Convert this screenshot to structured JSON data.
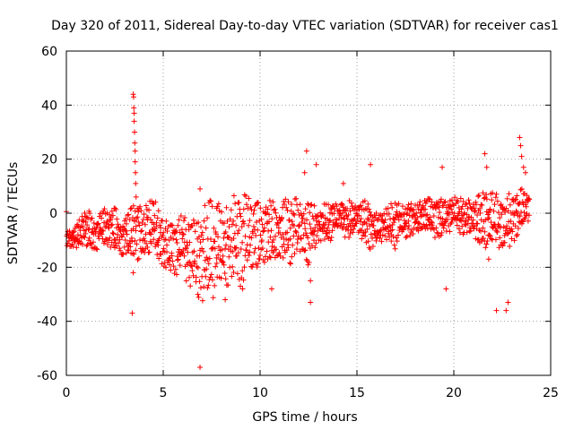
{
  "chart_data": {
    "type": "scatter",
    "title": "Day 320 of 2011, Sidereal Day-to-day VTEC variation (SDTVAR) for receiver cas1",
    "xlabel": "GPS time / hours",
    "ylabel": "SDTVAR / TECUs",
    "xlim": [
      0,
      25
    ],
    "ylim": [
      -60,
      60
    ],
    "xticks": [
      0,
      5,
      10,
      15,
      20,
      25
    ],
    "yticks": [
      -60,
      -40,
      -20,
      0,
      20,
      40,
      60
    ],
    "xtick_labels": [
      "0",
      "5",
      "10",
      "15",
      "20",
      "25"
    ],
    "ytick_labels": [
      "-60",
      "-40",
      "-20",
      "0",
      "20",
      "40",
      "60"
    ],
    "grid": true,
    "marker": "+",
    "color": "#ff0000",
    "coverage_hours": [
      0,
      23.9
    ],
    "band": [
      {
        "x": 0.0,
        "lo": -12,
        "hi": -6
      },
      {
        "x": 0.5,
        "lo": -14,
        "hi": -5
      },
      {
        "x": 1.0,
        "lo": -13,
        "hi": 3
      },
      {
        "x": 1.5,
        "lo": -14,
        "hi": -2
      },
      {
        "x": 2.0,
        "lo": -12,
        "hi": 2
      },
      {
        "x": 2.5,
        "lo": -14,
        "hi": 2
      },
      {
        "x": 3.0,
        "lo": -16,
        "hi": -2
      },
      {
        "x": 3.5,
        "lo": -18,
        "hi": 4
      },
      {
        "x": 4.0,
        "lo": -16,
        "hi": 3
      },
      {
        "x": 4.5,
        "lo": -14,
        "hi": 6
      },
      {
        "x": 5.0,
        "lo": -20,
        "hi": -2
      },
      {
        "x": 5.5,
        "lo": -22,
        "hi": -4
      },
      {
        "x": 6.0,
        "lo": -24,
        "hi": 0
      },
      {
        "x": 6.5,
        "lo": -28,
        "hi": -2
      },
      {
        "x": 7.0,
        "lo": -34,
        "hi": 2
      },
      {
        "x": 7.5,
        "lo": -33,
        "hi": 6
      },
      {
        "x": 8.0,
        "lo": -28,
        "hi": 3
      },
      {
        "x": 8.5,
        "lo": -26,
        "hi": 8
      },
      {
        "x": 9.0,
        "lo": -28,
        "hi": 8
      },
      {
        "x": 9.5,
        "lo": -20,
        "hi": 6
      },
      {
        "x": 10.0,
        "lo": -20,
        "hi": 4
      },
      {
        "x": 10.5,
        "lo": -18,
        "hi": 5
      },
      {
        "x": 11.0,
        "lo": -16,
        "hi": 4
      },
      {
        "x": 11.5,
        "lo": -20,
        "hi": 6
      },
      {
        "x": 12.0,
        "lo": -14,
        "hi": 6
      },
      {
        "x": 12.5,
        "lo": -20,
        "hi": 4
      },
      {
        "x": 13.0,
        "lo": -10,
        "hi": 3
      },
      {
        "x": 13.5,
        "lo": -12,
        "hi": 4
      },
      {
        "x": 14.0,
        "lo": -6,
        "hi": 4
      },
      {
        "x": 14.5,
        "lo": -10,
        "hi": 5
      },
      {
        "x": 15.0,
        "lo": -6,
        "hi": 4
      },
      {
        "x": 15.5,
        "lo": -14,
        "hi": 5
      },
      {
        "x": 16.0,
        "lo": -12,
        "hi": 0
      },
      {
        "x": 16.5,
        "lo": -10,
        "hi": 2
      },
      {
        "x": 17.0,
        "lo": -14,
        "hi": 5
      },
      {
        "x": 17.5,
        "lo": -10,
        "hi": 5
      },
      {
        "x": 18.0,
        "lo": -8,
        "hi": 4
      },
      {
        "x": 18.5,
        "lo": -6,
        "hi": 5
      },
      {
        "x": 19.0,
        "lo": -10,
        "hi": 6
      },
      {
        "x": 19.5,
        "lo": -8,
        "hi": 7
      },
      {
        "x": 20.0,
        "lo": -6,
        "hi": 6
      },
      {
        "x": 20.5,
        "lo": -8,
        "hi": 6
      },
      {
        "x": 21.0,
        "lo": -8,
        "hi": 5
      },
      {
        "x": 21.5,
        "lo": -14,
        "hi": 8
      },
      {
        "x": 22.0,
        "lo": -10,
        "hi": 8
      },
      {
        "x": 22.5,
        "lo": -16,
        "hi": 6
      },
      {
        "x": 23.0,
        "lo": -12,
        "hi": 8
      },
      {
        "x": 23.5,
        "lo": -6,
        "hi": 9
      },
      {
        "x": 23.9,
        "lo": -4,
        "hi": 8
      }
    ],
    "outliers": [
      {
        "x": 3.45,
        "y": 44
      },
      {
        "x": 3.47,
        "y": 43
      },
      {
        "x": 3.48,
        "y": 39
      },
      {
        "x": 3.5,
        "y": 37
      },
      {
        "x": 3.5,
        "y": 34
      },
      {
        "x": 3.52,
        "y": 30
      },
      {
        "x": 3.53,
        "y": 26
      },
      {
        "x": 3.55,
        "y": 23
      },
      {
        "x": 3.55,
        "y": 19
      },
      {
        "x": 3.57,
        "y": 15
      },
      {
        "x": 3.58,
        "y": 11
      },
      {
        "x": 3.6,
        "y": 6
      },
      {
        "x": 3.45,
        "y": -22
      },
      {
        "x": 3.4,
        "y": -37
      },
      {
        "x": 6.9,
        "y": -57
      },
      {
        "x": 6.9,
        "y": 9
      },
      {
        "x": 12.4,
        "y": 23
      },
      {
        "x": 12.3,
        "y": 15
      },
      {
        "x": 12.9,
        "y": 18
      },
      {
        "x": 12.6,
        "y": -25
      },
      {
        "x": 12.6,
        "y": -33
      },
      {
        "x": 14.3,
        "y": 11
      },
      {
        "x": 15.7,
        "y": 18
      },
      {
        "x": 19.4,
        "y": 17
      },
      {
        "x": 19.6,
        "y": -28
      },
      {
        "x": 21.6,
        "y": 22
      },
      {
        "x": 21.7,
        "y": 17
      },
      {
        "x": 21.8,
        "y": -17
      },
      {
        "x": 22.2,
        "y": -36
      },
      {
        "x": 22.7,
        "y": -36
      },
      {
        "x": 22.8,
        "y": -33
      },
      {
        "x": 23.4,
        "y": 28
      },
      {
        "x": 23.45,
        "y": 25
      },
      {
        "x": 23.5,
        "y": 21
      },
      {
        "x": 23.6,
        "y": 17
      },
      {
        "x": 23.7,
        "y": 15
      },
      {
        "x": 9.1,
        "y": -28
      },
      {
        "x": 10.6,
        "y": -28
      },
      {
        "x": 8.2,
        "y": -32
      }
    ]
  }
}
